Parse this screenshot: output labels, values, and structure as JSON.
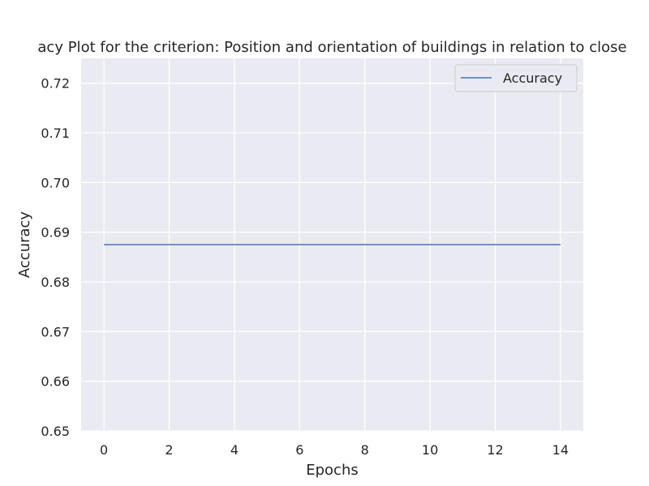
{
  "chart_data": {
    "type": "line",
    "title": "acy Plot for the criterion: Position and orientation of buildings in relation to close",
    "xlabel": "Epochs",
    "ylabel": "Accuracy",
    "x": [
      0,
      1,
      2,
      3,
      4,
      5,
      6,
      7,
      8,
      9,
      10,
      11,
      12,
      13,
      14
    ],
    "series": [
      {
        "name": "Accuracy",
        "values": [
          0.6875,
          0.6875,
          0.6875,
          0.6875,
          0.6875,
          0.6875,
          0.6875,
          0.6875,
          0.6875,
          0.6875,
          0.6875,
          0.6875,
          0.6875,
          0.6875,
          0.6875
        ],
        "color": "#4c72b0"
      }
    ],
    "xlim": [
      -0.7,
      14.7
    ],
    "ylim": [
      0.65,
      0.725
    ],
    "xticks": [
      "0",
      "2",
      "4",
      "6",
      "8",
      "10",
      "12",
      "14"
    ],
    "yticks": [
      "0.65",
      "0.66",
      "0.67",
      "0.68",
      "0.69",
      "0.70",
      "0.71",
      "0.72"
    ],
    "grid": true,
    "legend": "top-right",
    "colors": {
      "plot_background": "#eaeaf2",
      "grid": "#ffffff"
    }
  }
}
